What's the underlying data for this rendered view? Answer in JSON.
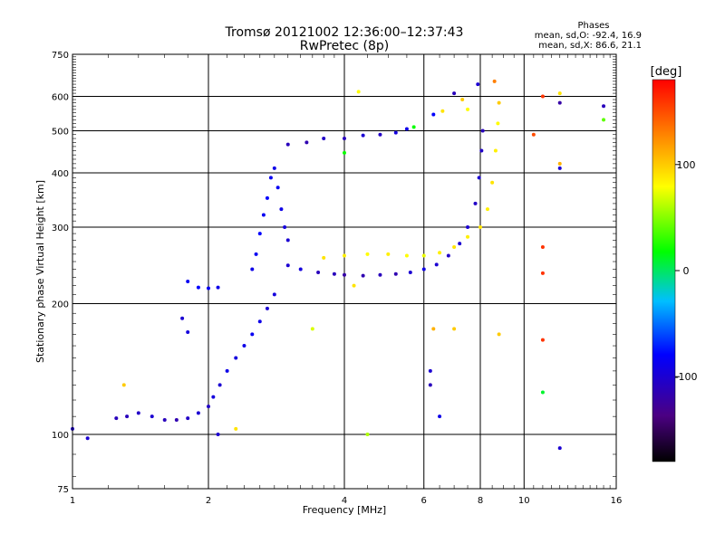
{
  "chart_data": {
    "type": "scatter",
    "title": "Tromsø 20121002 12:36:00–12:37:43",
    "subtitle": "RwPretec (8p)",
    "xlabel": "Frequency [MHz]",
    "ylabel": "Stationary phase Virtual Height [km]",
    "x_scale": "log2",
    "y_scale": "log",
    "xlim": [
      1,
      16
    ],
    "ylim": [
      75,
      750
    ],
    "x_ticks": [
      1,
      2,
      4,
      6,
      8,
      10,
      16
    ],
    "x_tick_labels": [
      "1",
      "2",
      "4",
      "6",
      "8",
      "10",
      "16"
    ],
    "y_ticks": [
      75,
      100,
      200,
      300,
      400,
      500,
      600,
      750
    ],
    "y_tick_labels": [
      "75",
      "100",
      "200",
      "300",
      "400",
      "500",
      "600",
      "750"
    ],
    "grid": true,
    "stats": {
      "title": "Phases",
      "line_o": "mean, sd,O: -92.4, 16.9",
      "line_x": "mean, sd,X:  86.6, 21.1"
    },
    "colorbar": {
      "label": "[deg]",
      "min": -180,
      "max": 180,
      "ticks": [
        100,
        0,
        -100
      ],
      "tick_labels": [
        "100",
        "0",
        "-100"
      ]
    },
    "points": [
      [
        1.0,
        103,
        -100
      ],
      [
        1.08,
        98,
        -100
      ],
      [
        1.25,
        109,
        -110
      ],
      [
        1.32,
        110,
        -110
      ],
      [
        1.4,
        112,
        -105
      ],
      [
        1.5,
        110,
        -100
      ],
      [
        1.6,
        108,
        -110
      ],
      [
        1.7,
        108,
        -115
      ],
      [
        1.8,
        109,
        -105
      ],
      [
        1.9,
        112,
        -100
      ],
      [
        2.0,
        116,
        -105
      ],
      [
        2.05,
        122,
        -95
      ],
      [
        2.12,
        130,
        -100
      ],
      [
        2.2,
        140,
        -90
      ],
      [
        2.3,
        150,
        -95
      ],
      [
        2.4,
        160,
        -90
      ],
      [
        2.5,
        170,
        -85
      ],
      [
        2.6,
        182,
        -90
      ],
      [
        2.7,
        195,
        -100
      ],
      [
        2.8,
        210,
        -95
      ],
      [
        1.8,
        225,
        -85
      ],
      [
        1.9,
        218,
        -80
      ],
      [
        2.0,
        217,
        -85
      ],
      [
        2.1,
        218,
        -90
      ],
      [
        1.75,
        185,
        -100
      ],
      [
        1.8,
        172,
        -95
      ],
      [
        2.5,
        240,
        -90
      ],
      [
        2.55,
        260,
        -85
      ],
      [
        2.6,
        290,
        -80
      ],
      [
        2.65,
        320,
        -85
      ],
      [
        2.7,
        350,
        -80
      ],
      [
        2.75,
        390,
        -85
      ],
      [
        2.8,
        410,
        -90
      ],
      [
        2.85,
        370,
        -85
      ],
      [
        2.9,
        330,
        -90
      ],
      [
        2.95,
        300,
        -95
      ],
      [
        3.0,
        280,
        -100
      ],
      [
        3.0,
        245,
        -100
      ],
      [
        3.2,
        240,
        -95
      ],
      [
        3.5,
        236,
        -110
      ],
      [
        3.8,
        234,
        -110
      ],
      [
        4.0,
        233,
        -120
      ],
      [
        4.4,
        232,
        -115
      ],
      [
        4.8,
        233,
        -110
      ],
      [
        5.2,
        234,
        -115
      ],
      [
        5.6,
        236,
        -100
      ],
      [
        6.0,
        240,
        -90
      ],
      [
        6.4,
        246,
        -100
      ],
      [
        6.8,
        258,
        -105
      ],
      [
        7.2,
        275,
        -100
      ],
      [
        7.5,
        300,
        -100
      ],
      [
        7.8,
        340,
        -105
      ],
      [
        7.95,
        390,
        -100
      ],
      [
        8.05,
        450,
        -105
      ],
      [
        8.1,
        500,
        -110
      ],
      [
        3.6,
        255,
        90
      ],
      [
        4.0,
        258,
        85
      ],
      [
        4.5,
        260,
        80
      ],
      [
        5.0,
        260,
        85
      ],
      [
        5.5,
        258,
        80
      ],
      [
        6.0,
        258,
        75
      ],
      [
        6.5,
        262,
        85
      ],
      [
        7.0,
        270,
        90
      ],
      [
        7.5,
        285,
        85
      ],
      [
        8.0,
        300,
        90
      ],
      [
        8.3,
        330,
        85
      ],
      [
        8.5,
        380,
        90
      ],
      [
        8.65,
        450,
        85
      ],
      [
        8.75,
        520,
        80
      ],
      [
        8.8,
        580,
        100
      ],
      [
        3.0,
        465,
        -110
      ],
      [
        3.3,
        470,
        -115
      ],
      [
        3.6,
        480,
        -105
      ],
      [
        4.0,
        480,
        -110
      ],
      [
        4.4,
        488,
        -100
      ],
      [
        4.8,
        490,
        -105
      ],
      [
        5.2,
        495,
        -95
      ],
      [
        5.5,
        505,
        -90
      ],
      [
        5.7,
        510,
        20
      ],
      [
        6.3,
        545,
        -80
      ],
      [
        6.6,
        555,
        90
      ],
      [
        7.0,
        610,
        -110
      ],
      [
        7.3,
        590,
        100
      ],
      [
        7.5,
        560,
        80
      ],
      [
        7.9,
        640,
        -100
      ],
      [
        8.6,
        650,
        130
      ],
      [
        11.0,
        600,
        160
      ],
      [
        12.0,
        610,
        90
      ],
      [
        12.0,
        580,
        -120
      ],
      [
        15.0,
        570,
        -110
      ],
      [
        15.0,
        530,
        40
      ],
      [
        10.5,
        490,
        150
      ],
      [
        12.0,
        420,
        110
      ],
      [
        12.0,
        410,
        -100
      ],
      [
        11.0,
        270,
        160
      ],
      [
        11.0,
        235,
        160
      ],
      [
        11.0,
        165,
        160
      ],
      [
        11.0,
        125,
        10
      ],
      [
        12.0,
        93,
        -100
      ],
      [
        6.2,
        130,
        -110
      ],
      [
        6.2,
        140,
        -100
      ],
      [
        6.3,
        175,
        110
      ],
      [
        7.0,
        175,
        100
      ],
      [
        6.5,
        110,
        -90
      ],
      [
        8.8,
        170,
        100
      ],
      [
        4.5,
        100,
        60
      ],
      [
        3.4,
        175,
        70
      ],
      [
        4.2,
        220,
        90
      ],
      [
        4.3,
        615,
        80
      ],
      [
        4.0,
        445,
        20
      ],
      [
        1.3,
        130,
        100
      ],
      [
        2.3,
        103,
        90
      ],
      [
        2.1,
        100,
        -100
      ]
    ]
  }
}
